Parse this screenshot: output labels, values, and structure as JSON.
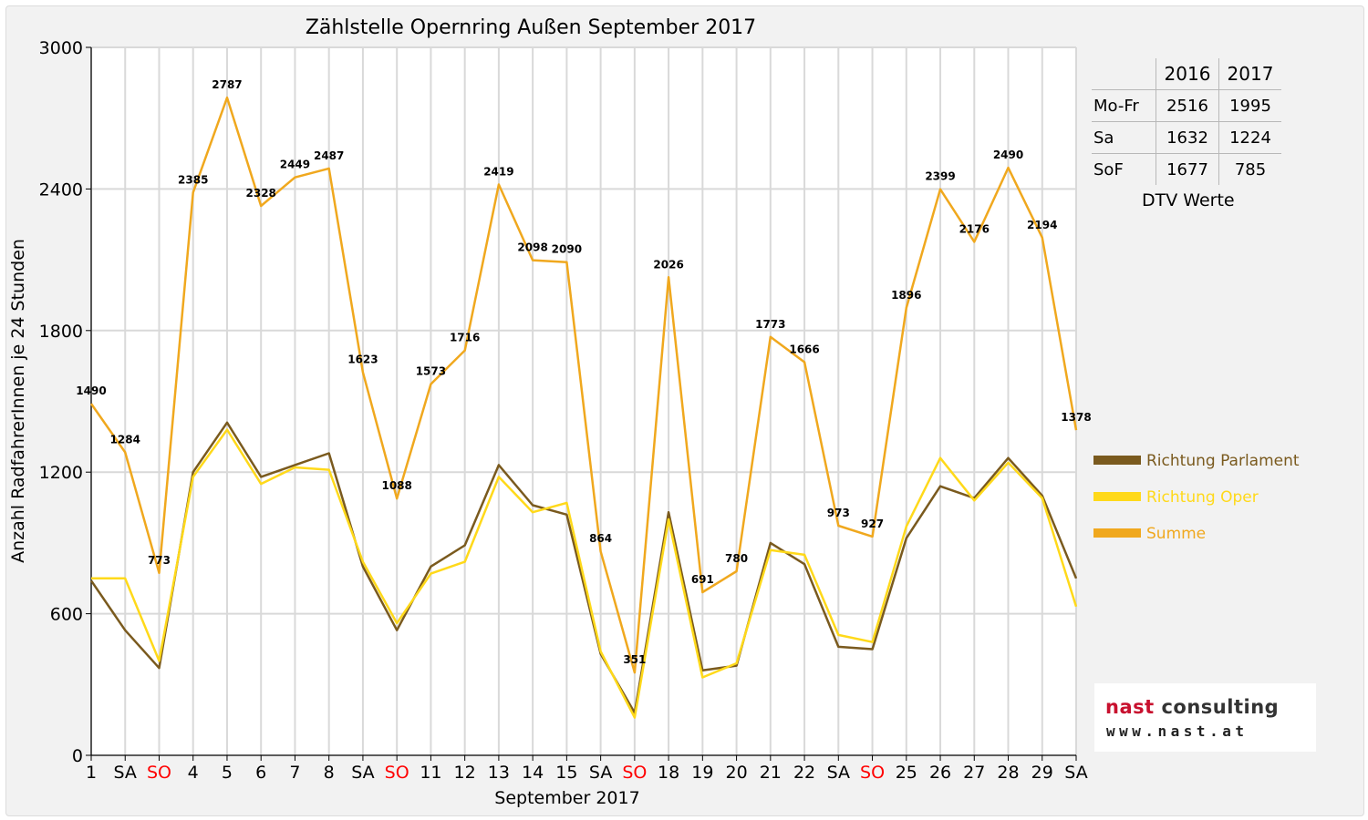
{
  "chart_data": {
    "type": "line",
    "title": "Zählstelle Opernring Außen September 2017",
    "xlabel": "September 2017",
    "ylabel": "Anzahl RadfahrerInnen je 24 Stunden",
    "ylim": [
      0,
      3000
    ],
    "yticks": [
      "0",
      "600",
      "1200",
      "1800",
      "2400",
      "3000"
    ],
    "grid": true,
    "legend_position": "right",
    "categories": [
      "1",
      "SA",
      "SO",
      "4",
      "5",
      "6",
      "7",
      "8",
      "SA",
      "SO",
      "11",
      "12",
      "13",
      "14",
      "15",
      "SA",
      "SO",
      "18",
      "19",
      "20",
      "21",
      "22",
      "SA",
      "SO",
      "25",
      "26",
      "27",
      "28",
      "29",
      "SA"
    ],
    "weekend_colors": {
      "SA": "#000000",
      "SO": "#ff0000"
    },
    "series": [
      {
        "name": "Richtung Parlament",
        "color": "#7a5a1e",
        "values": [
          740,
          530,
          370,
          1200,
          1410,
          1180,
          1230,
          1280,
          800,
          530,
          800,
          890,
          1230,
          1060,
          1020,
          430,
          180,
          1030,
          360,
          380,
          900,
          810,
          460,
          450,
          920,
          1140,
          1090,
          1260,
          1100,
          750
        ]
      },
      {
        "name": "Richtung Oper",
        "color": "#ffd91a",
        "values": [
          750,
          750,
          400,
          1180,
          1380,
          1150,
          1220,
          1210,
          820,
          560,
          770,
          820,
          1180,
          1030,
          1070,
          440,
          160,
          1000,
          330,
          390,
          870,
          850,
          510,
          480,
          970,
          1260,
          1080,
          1240,
          1090,
          630
        ]
      },
      {
        "name": "Summe",
        "color": "#f0a81e",
        "values": [
          1490,
          1284,
          773,
          2385,
          2787,
          2328,
          2449,
          2487,
          1623,
          1088,
          1573,
          1716,
          2419,
          2098,
          2090,
          864,
          351,
          2026,
          691,
          780,
          1773,
          1666,
          973,
          927,
          1896,
          2399,
          2176,
          2490,
          2194,
          1378
        ],
        "labels": [
          "1490",
          "1284",
          "773",
          "2385",
          "2787",
          "2328",
          "2449",
          "2487",
          "1623",
          "1088",
          "1573",
          "1716",
          "2419",
          "2098",
          "2090",
          "864",
          "351",
          "2026",
          "691",
          "780",
          "1773",
          "1666",
          "973",
          "927",
          "1896",
          "2399",
          "2176",
          "2490",
          "2194",
          "1378"
        ]
      }
    ]
  },
  "dtv_table": {
    "headers": [
      "2016",
      "2017"
    ],
    "rows": [
      {
        "label": "Mo-Fr",
        "v2016": "2516",
        "v2017": "1995"
      },
      {
        "label": "Sa",
        "v2016": "1632",
        "v2017": "1224"
      },
      {
        "label": "SoF",
        "v2016": "1677",
        "v2017": "785"
      }
    ],
    "caption": "DTV Werte"
  },
  "logo": {
    "brand_part1": "nast",
    "brand_part2": " consulting",
    "url": "www.nast.at"
  }
}
